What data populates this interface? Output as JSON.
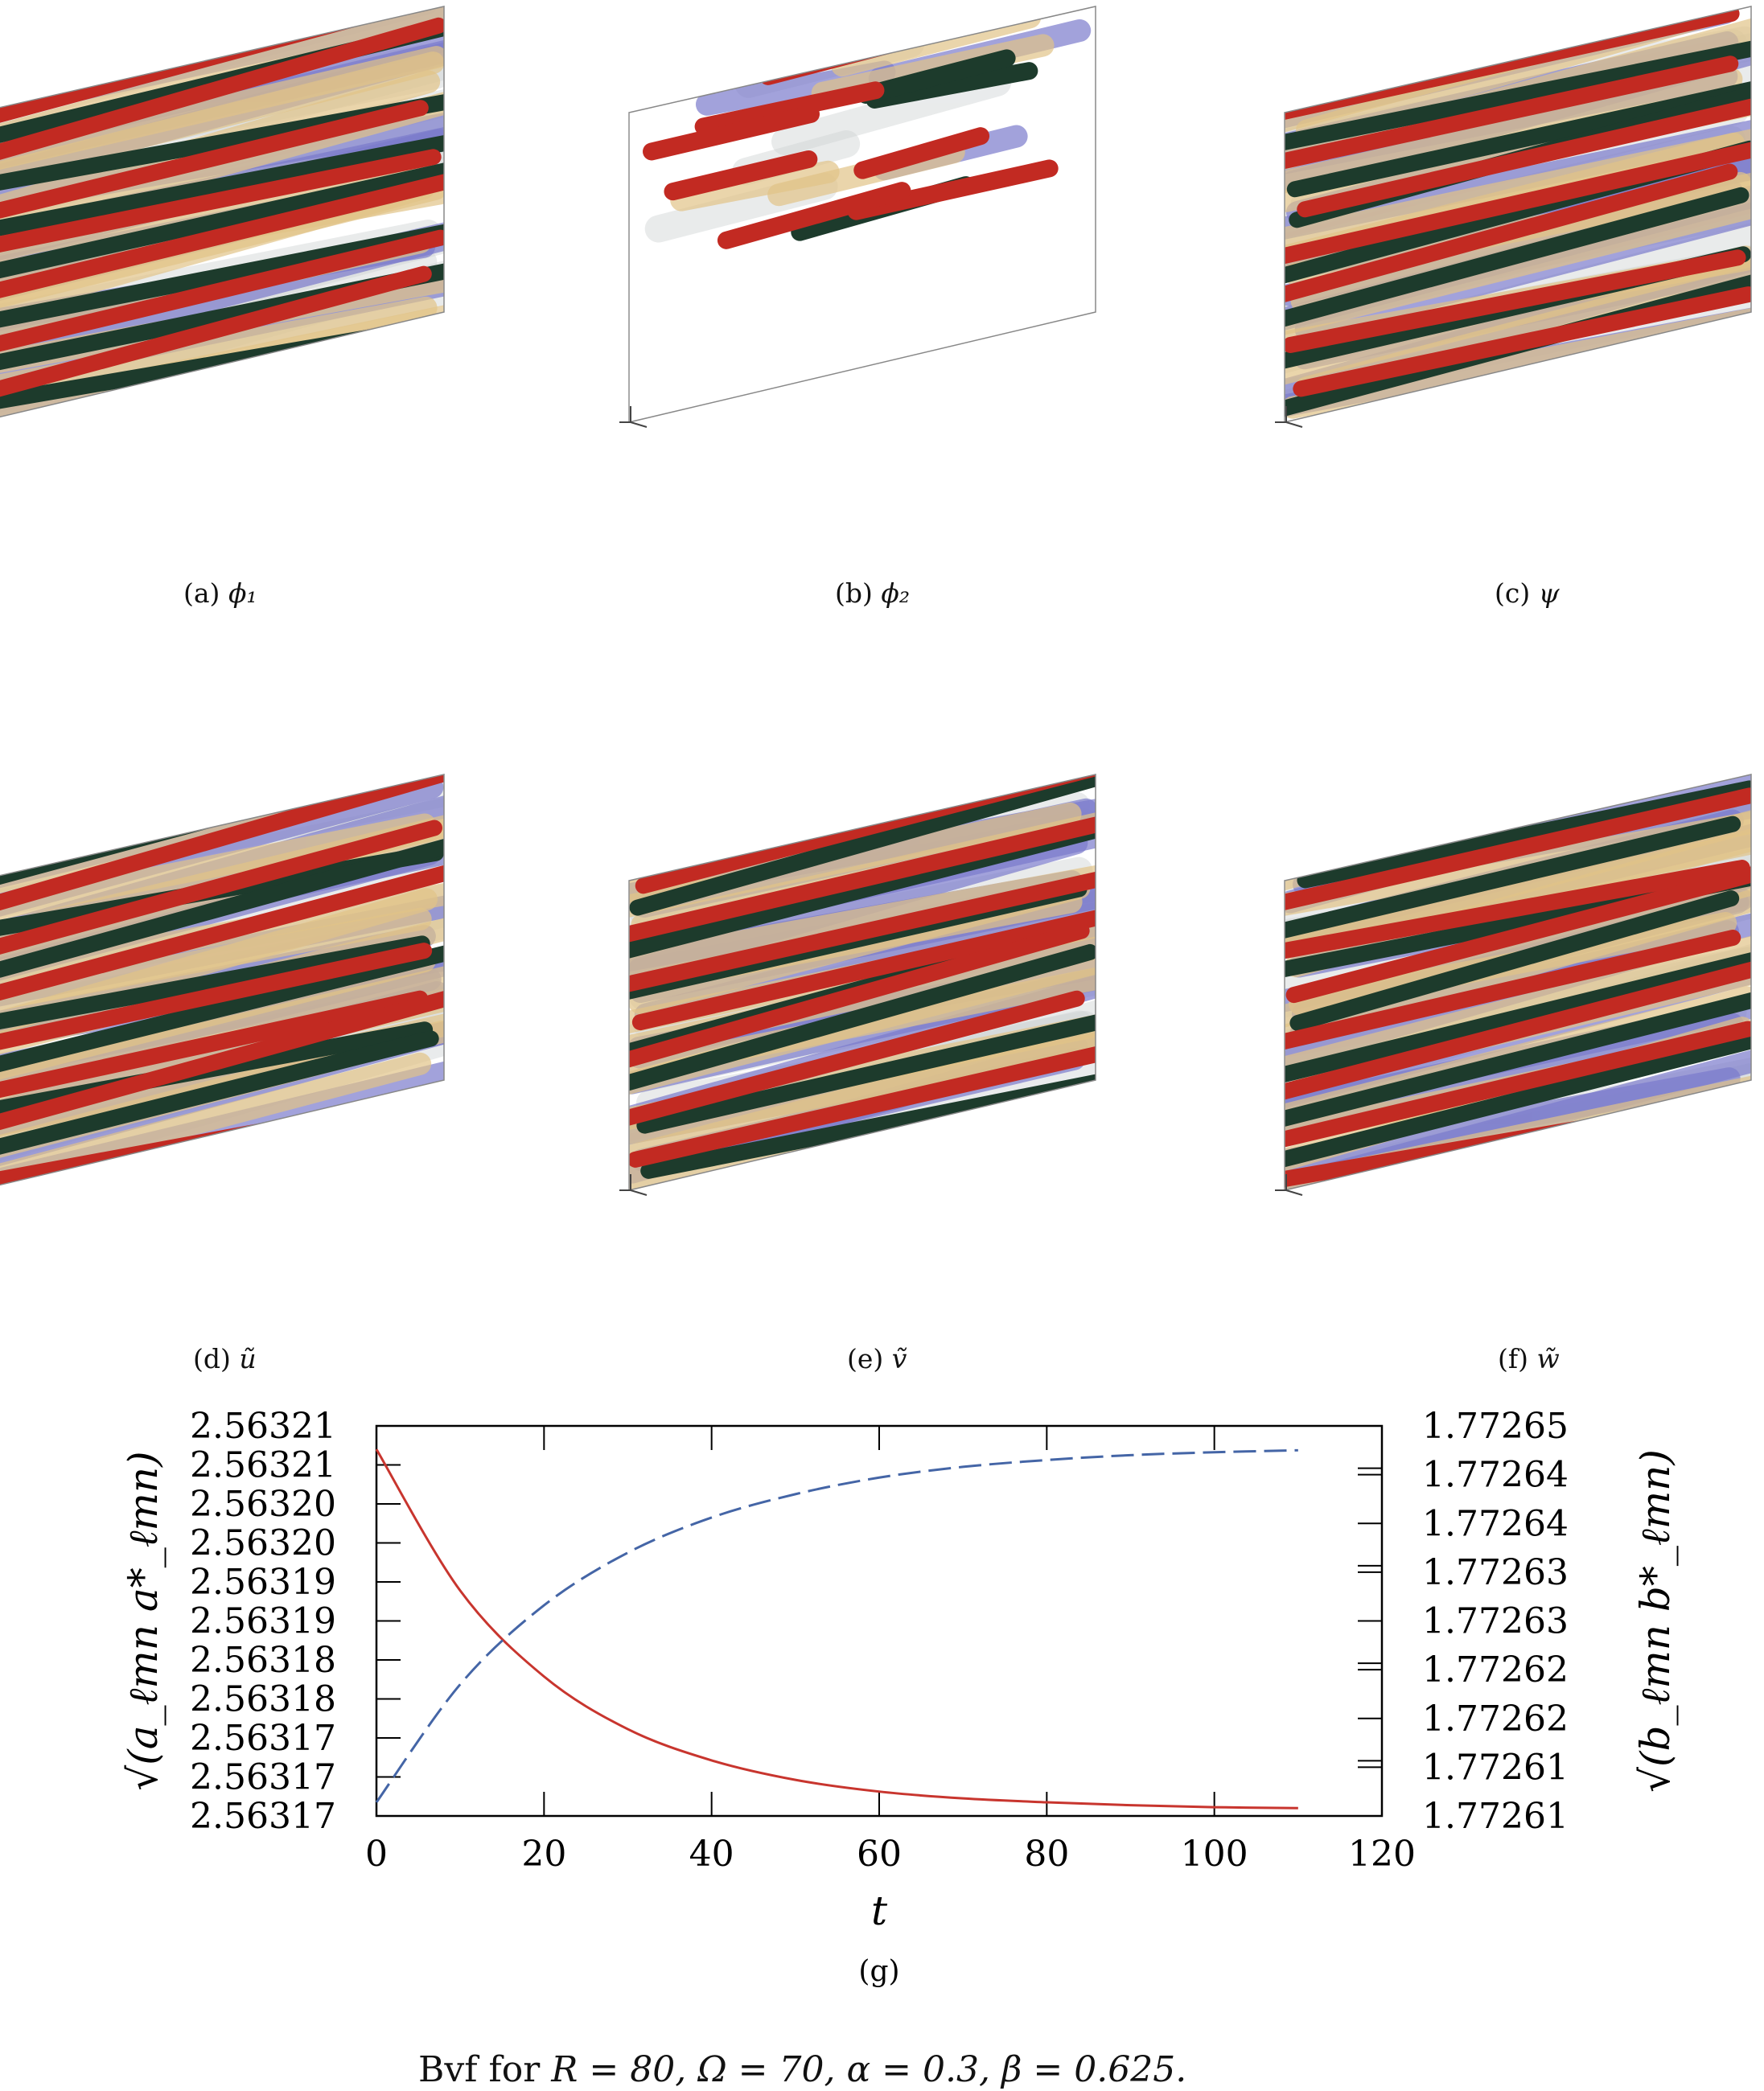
{
  "colors": {
    "positive": "#c22a22",
    "negative": "#1d3b2c",
    "mid_negative": "#7b7bcc",
    "mid_positive": "#e2c488",
    "background_iso": "#cfd3d4",
    "red_curve": "#c8352e",
    "blue_curve": "#4465a6"
  },
  "panels": [
    {
      "label": "(a)",
      "symbol": "ϕ₁"
    },
    {
      "label": "(b)",
      "symbol": "ϕ₂"
    },
    {
      "label": "(c)",
      "symbol": "ψ"
    },
    {
      "label": "(d)",
      "symbol": "ũ"
    },
    {
      "label": "(e)",
      "symbol": "ṽ"
    },
    {
      "label": "(f)",
      "symbol": "w̃"
    }
  ],
  "chart_data": {
    "type": "line",
    "label": "(g)",
    "xlabel": "t",
    "ylabel_left": "√(a_ℓmn a*_ℓmn)",
    "ylabel_right": "√(b_ℓmn b*_ℓmn)",
    "xlim": [
      0,
      120
    ],
    "ylim_left": [
      2.56317,
      2.56321
    ],
    "ylim_right": [
      1.77261,
      1.77265
    ],
    "x_ticks": [
      "0",
      "20",
      "40",
      "60",
      "80",
      "100",
      "120"
    ],
    "left_tick_labels": [
      "2.56317",
      "2.56317",
      "2.56317",
      "2.56318",
      "2.56318",
      "2.56319",
      "2.56319",
      "2.56320",
      "2.56320",
      "2.56321",
      "2.56321"
    ],
    "right_tick_labels": [
      "1.77261",
      "1.77261",
      "1.77262",
      "1.77262",
      "1.77263",
      "1.77263",
      "1.77264",
      "1.77264",
      "1.77265"
    ],
    "grid": false,
    "x": [
      0,
      10,
      20,
      30,
      40,
      50,
      60,
      70,
      80,
      90,
      100,
      110
    ],
    "series": [
      {
        "axis": "left",
        "style": "solid",
        "color": "#c8352e",
        "values": [
          2.5632076,
          2.5631931,
          2.5631843,
          2.5631789,
          2.5631757,
          2.5631737,
          2.5631725,
          2.5631718,
          2.5631714,
          2.5631711,
          2.5631709,
          2.5631708
        ]
      },
      {
        "axis": "right",
        "style": "dashed",
        "color": "#4465a6",
        "values": [
          1.7726114,
          1.7726235,
          1.7726316,
          1.772637,
          1.7726406,
          1.772643,
          1.7726447,
          1.7726458,
          1.7726465,
          1.772647,
          1.7726473,
          1.7726475
        ]
      }
    ]
  },
  "caption": {
    "prefix": "Bvf for ",
    "body": "R = 80, Ω = 70, α = 0.3, β = 0.625."
  }
}
